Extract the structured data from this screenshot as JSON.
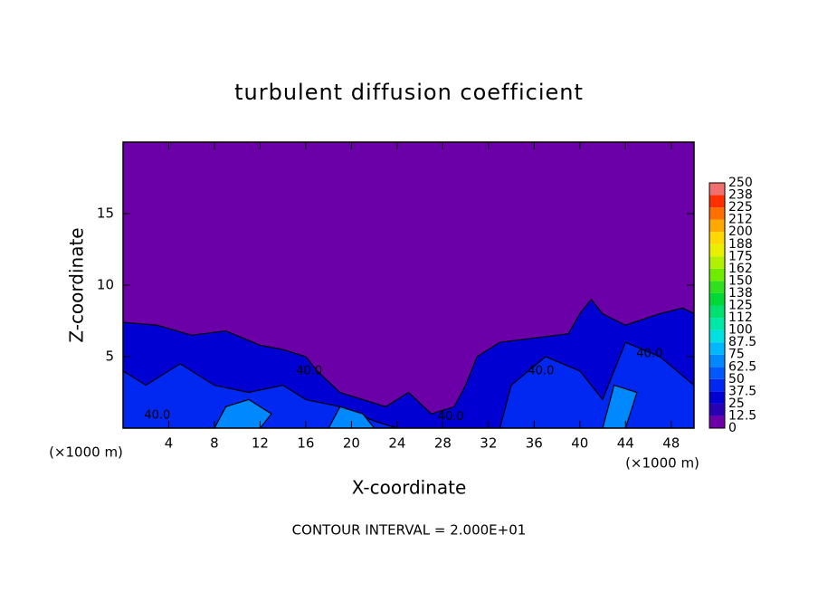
{
  "chart_data": {
    "type": "contour",
    "title": "turbulent diffusion coefficient",
    "xlabel": "X-coordinate",
    "ylabel": "Z-coordinate",
    "x_unit_labels": [
      "(×1000 m)",
      "(×1000 m)"
    ],
    "footnote": "CONTOUR INTERVAL = 2.000E+01",
    "xlim": [
      0,
      50
    ],
    "xticks": [
      4,
      8,
      12,
      16,
      20,
      24,
      28,
      32,
      36,
      40,
      44,
      48
    ],
    "ylim": [
      0,
      20
    ],
    "yticks": [
      5,
      10,
      15
    ],
    "colorbar": {
      "levels": [
        0,
        12.5,
        25,
        37.5,
        50,
        62.5,
        75,
        87.5,
        100,
        112,
        125,
        138,
        150,
        162,
        175,
        188,
        200,
        212,
        225,
        238,
        250
      ],
      "colors": [
        "#6c00a8",
        "#2a00b4",
        "#0000d2",
        "#0028f0",
        "#0058ff",
        "#0088ff",
        "#00b8ff",
        "#00e0e0",
        "#00e8a8",
        "#00e070",
        "#00d838",
        "#30e020",
        "#70ec00",
        "#b0f000",
        "#e8f000",
        "#ffd800",
        "#ffa800",
        "#ff7000",
        "#ff3000",
        "#f07070"
      ]
    },
    "regions": [
      {
        "value": 30,
        "points": [
          [
            0,
            0
          ],
          [
            0,
            7.4
          ],
          [
            3,
            7.2
          ],
          [
            6,
            6.5
          ],
          [
            9,
            6.8
          ],
          [
            12,
            5.8
          ],
          [
            14,
            5.5
          ],
          [
            16,
            5.0
          ],
          [
            17,
            4.0
          ],
          [
            19,
            2.5
          ],
          [
            21,
            2.0
          ],
          [
            23,
            1.5
          ],
          [
            25,
            2.5
          ],
          [
            27,
            1.0
          ],
          [
            29,
            1.5
          ],
          [
            30,
            3.0
          ],
          [
            31,
            5.0
          ],
          [
            33,
            6.0
          ],
          [
            36,
            6.3
          ],
          [
            39,
            6.6
          ],
          [
            40,
            8.0
          ],
          [
            41,
            9.0
          ],
          [
            42,
            8.0
          ],
          [
            44,
            7.2
          ],
          [
            47,
            8.0
          ],
          [
            49,
            8.4
          ],
          [
            50,
            8.0
          ],
          [
            50,
            0
          ]
        ]
      },
      {
        "value": 45,
        "points": [
          [
            0,
            0
          ],
          [
            0,
            4
          ],
          [
            2,
            3
          ],
          [
            5,
            4.5
          ],
          [
            8,
            3
          ],
          [
            11,
            2.5
          ],
          [
            14,
            3
          ],
          [
            16,
            2
          ],
          [
            19,
            1.5
          ],
          [
            22,
            0.5
          ],
          [
            24,
            0
          ]
        ]
      },
      {
        "value": 45,
        "points": [
          [
            33,
            0
          ],
          [
            34,
            3
          ],
          [
            37,
            5
          ],
          [
            40,
            4
          ],
          [
            42,
            2
          ],
          [
            44,
            6
          ],
          [
            47,
            5
          ],
          [
            50,
            3
          ],
          [
            50,
            0
          ]
        ]
      },
      {
        "value": 65,
        "points": [
          [
            8,
            0
          ],
          [
            9,
            1.5
          ],
          [
            11,
            2
          ],
          [
            13,
            1
          ],
          [
            12,
            0
          ]
        ]
      },
      {
        "value": 65,
        "points": [
          [
            18,
            0
          ],
          [
            19,
            1.5
          ],
          [
            21,
            1
          ],
          [
            22,
            0
          ]
        ]
      },
      {
        "value": 65,
        "points": [
          [
            42,
            0
          ],
          [
            43,
            3
          ],
          [
            45,
            2.5
          ],
          [
            44,
            0
          ]
        ]
      }
    ],
    "annotations": [
      {
        "text": "40.0",
        "x": 3.0,
        "y": 0.9
      },
      {
        "text": "40.0",
        "x": 16.3,
        "y": 4.0
      },
      {
        "text": "40.0",
        "x": 36.6,
        "y": 4.0
      },
      {
        "text": "40.0",
        "x": 28.7,
        "y": 0.8
      },
      {
        "text": "40.0",
        "x": 46.1,
        "y": 5.2
      }
    ]
  }
}
